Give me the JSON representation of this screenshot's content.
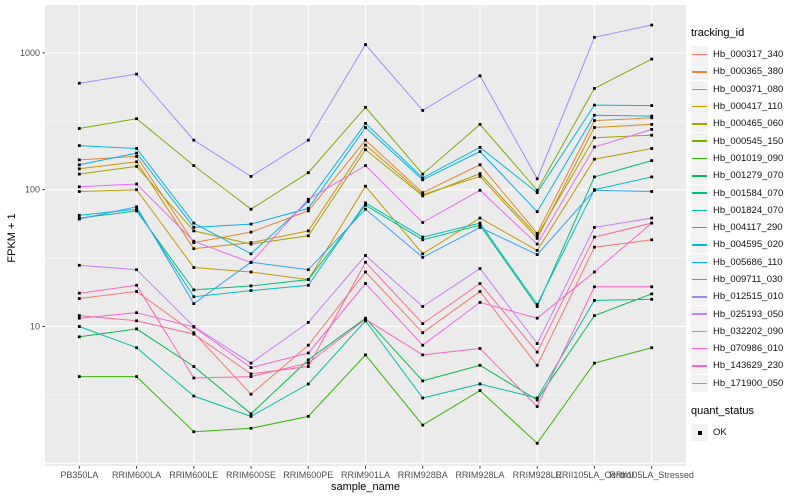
{
  "figure": {
    "y_axis_title": "FPKM + 1",
    "x_axis_title": "sample_name",
    "legends": {
      "tracking": {
        "title": "tracking_id"
      },
      "quant": {
        "title": "quant_status",
        "item_ok": "OK"
      }
    },
    "colors": {
      "panel_background": "#EBEBEB",
      "gridline": "#FFFFFF",
      "tick_label": "#4D4D4D",
      "axis_title": "#000000",
      "point": "#000000",
      "legend_key_background": "#F2F2F2"
    }
  },
  "chart_data": {
    "type": "line",
    "title": "",
    "xlabel": "sample_name",
    "ylabel": "FPKM + 1",
    "y_scale": "log10",
    "ylim": [
      0.95,
      2240
    ],
    "y_tick_values": [
      10,
      100,
      1000
    ],
    "y_tick_labels": [
      "10",
      "100",
      "1000"
    ],
    "y_major_gridlines": [
      1,
      10,
      100,
      1000
    ],
    "y_minor_gridlines": [
      3.162,
      31.62,
      316.2
    ],
    "grid": "white-on-gray",
    "legend_position": "right",
    "marker": "filled-black-square",
    "categories": [
      "PB350LA",
      "RRIM600LA",
      "RRIM600LE",
      "RRIM600SE",
      "RRIM600PE",
      "RRIM901LA",
      "RRIM928BA",
      "RRIM928LA",
      "RRIM928LE",
      "RRII105LA_Control",
      "RRII105LA_Stressed"
    ],
    "series": [
      {
        "name": "Hb_000317_340",
        "color": "#F8766D",
        "values": [
          16,
          18,
          9,
          3.2,
          7.3,
          25,
          9.0,
          18,
          5.2,
          38,
          43
        ]
      },
      {
        "name": "Hb_000365_380",
        "color": "#EA8331",
        "values": [
          165,
          175,
          41,
          49,
          70,
          230,
          95,
          152,
          48,
          320,
          335
        ]
      },
      {
        "name": "Hb_000371_080",
        "color": "#D89000",
        "values": [
          142,
          160,
          37,
          41,
          50,
          212,
          92,
          125,
          44,
          285,
          300
        ]
      },
      {
        "name": "Hb_000417_110",
        "color": "#C09B00",
        "values": [
          97,
          100,
          27,
          25,
          22,
          106,
          34,
          62,
          36,
          167,
          200
        ]
      },
      {
        "name": "Hb_000465_060",
        "color": "#A3A500",
        "values": [
          130,
          148,
          50,
          40,
          46,
          196,
          90,
          131,
          46,
          240,
          250
        ]
      },
      {
        "name": "Hb_000545_150",
        "color": "#7CAE00",
        "values": [
          280,
          330,
          150,
          72,
          133,
          400,
          130,
          300,
          99,
          550,
          900
        ]
      },
      {
        "name": "Hb_001019_090",
        "color": "#39B600",
        "values": [
          4.3,
          4.3,
          1.7,
          1.8,
          2.2,
          6.2,
          1.9,
          3.4,
          1.4,
          5.4,
          7
        ]
      },
      {
        "name": "Hb_001279_070",
        "color": "#00BB4E",
        "values": [
          8.4,
          9.6,
          5.1,
          2.3,
          5.7,
          11.5,
          4.0,
          5.2,
          2.9,
          12,
          17.3
        ]
      },
      {
        "name": "Hb_001584_070",
        "color": "#00BF7D",
        "values": [
          62,
          70,
          18.5,
          19.8,
          22,
          77,
          43,
          55,
          14,
          124,
          163
        ]
      },
      {
        "name": "Hb_001824_070",
        "color": "#00C1A3",
        "values": [
          10,
          7,
          3.1,
          2.2,
          3.8,
          11,
          3.0,
          3.8,
          3.0,
          15.5,
          15.8
        ]
      },
      {
        "name": "Hb_004117_290",
        "color": "#00BFC4",
        "values": [
          65,
          72,
          16.5,
          18.3,
          20,
          80,
          45,
          57,
          14.5,
          100,
          124
        ]
      },
      {
        "name": "Hb_004595_020",
        "color": "#00BAE0",
        "values": [
          210,
          200,
          57,
          34,
          82,
          305,
          122,
          204,
          95,
          415,
          412
        ]
      },
      {
        "name": "Hb_005686_110",
        "color": "#00B0F6",
        "values": [
          152,
          185,
          53,
          56,
          73,
          285,
          118,
          190,
          69,
          350,
          345
        ]
      },
      {
        "name": "Hb_009711_030",
        "color": "#35A2FF",
        "values": [
          61,
          75,
          14.7,
          29.5,
          26,
          72,
          32,
          53,
          33.5,
          99,
          97
        ]
      },
      {
        "name": "Hb_012515_010",
        "color": "#9590FF",
        "values": [
          600,
          700,
          230,
          125,
          230,
          1150,
          380,
          680,
          120,
          1300,
          1600
        ]
      },
      {
        "name": "Hb_025193_050",
        "color": "#C77CFF",
        "values": [
          28,
          26,
          10,
          5.4,
          10.7,
          33,
          14,
          26.5,
          7.5,
          53,
          62
        ]
      },
      {
        "name": "Hb_032202_090",
        "color": "#E76BF3",
        "values": [
          105,
          110,
          42,
          29.3,
          85,
          150,
          57.5,
          99,
          40,
          205,
          276
        ]
      },
      {
        "name": "Hb_070986_010",
        "color": "#FA62DB",
        "values": [
          11.5,
          12.6,
          9.9,
          5.0,
          6.4,
          20.6,
          7.3,
          15,
          11.5,
          25,
          57
        ]
      },
      {
        "name": "Hb_143629_230",
        "color": "#FF62BC",
        "values": [
          17.5,
          20,
          4.2,
          4.3,
          5.4,
          11.3,
          6.2,
          6.9,
          2.6,
          19.5,
          19.5
        ]
      },
      {
        "name": "Hb_171900_050",
        "color": "#FF6A98",
        "values": [
          12,
          11,
          8.8,
          4.5,
          5.1,
          29.5,
          10.5,
          20.6,
          6.5,
          45,
          57
        ]
      }
    ]
  }
}
